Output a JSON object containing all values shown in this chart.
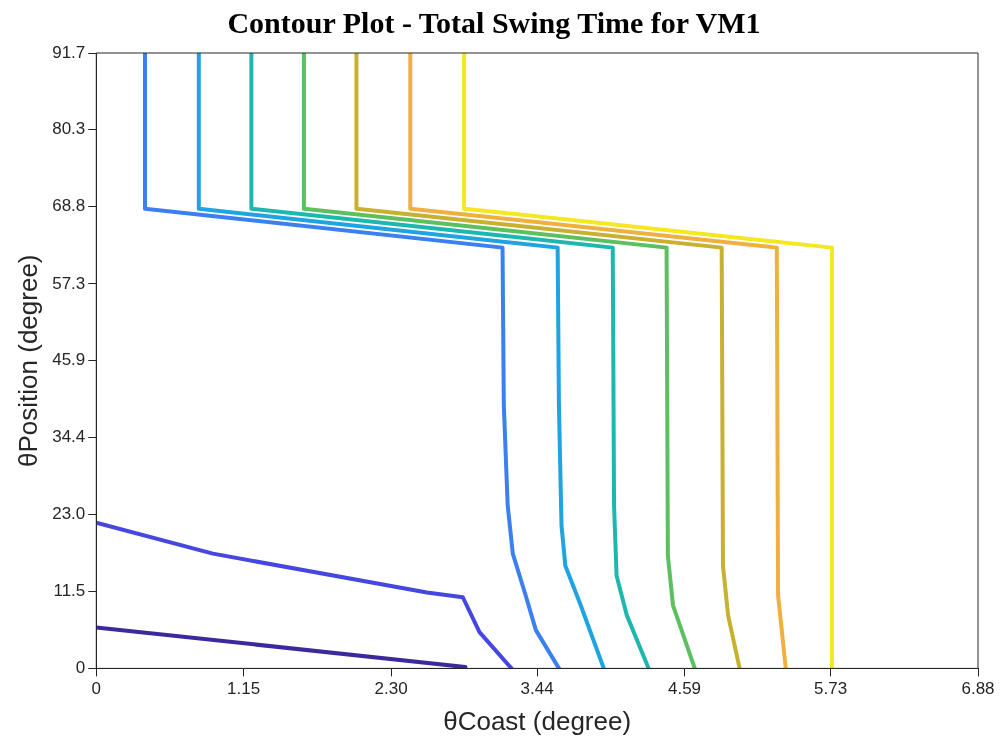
{
  "chart_data": {
    "type": "line",
    "title": "Contour Plot - Total Swing Time for VM1",
    "xlabel": "θCoast (degree)",
    "ylabel": "θPosition (degree)",
    "xlim": [
      0,
      6.88
    ],
    "xticks": [
      0,
      {
        "value": 1.15,
        "label": "1.15"
      },
      {
        "value": 2.3,
        "label": "2.30"
      },
      {
        "value": 3.44,
        "label": "3.44"
      },
      {
        "value": 4.59,
        "label": "4.59"
      },
      {
        "value": 5.73,
        "label": "5.73"
      },
      {
        "value": 6.88,
        "label": "6.88"
      }
    ],
    "ylim": [
      0,
      91.7
    ],
    "yticks": [
      0,
      11.5,
      {
        "value": 23,
        "label": "23.0"
      },
      34.4,
      45.9,
      57.3,
      68.8,
      80.3,
      91.7
    ],
    "grid": false,
    "legend": false,
    "marker": "none",
    "line_style": "solid",
    "series": [
      {
        "color": "#3a2a9c",
        "x": [
          0,
          2.88
        ],
        "values": [
          6.1,
          0.2
        ]
      },
      {
        "color": "#4646e0",
        "x": [
          0,
          0.91,
          2.58,
          2.86,
          2.99,
          3.24
        ],
        "values": [
          21.7,
          17.1,
          11.3,
          10.6,
          5.4,
          0
        ]
      },
      {
        "color": "#3a80f0",
        "x": [
          0.38,
          0.38,
          3.17,
          3.18,
          3.21,
          3.25,
          3.35,
          3.43,
          3.61
        ],
        "values": [
          91.7,
          68.5,
          62.7,
          39.2,
          24.3,
          17.1,
          10.9,
          5.7,
          0
        ]
      },
      {
        "color": "#1ea4e0",
        "x": [
          0.8,
          0.8,
          3.6,
          3.61,
          3.63,
          3.66,
          3.78,
          3.96
        ],
        "values": [
          91.7,
          68.5,
          62.7,
          39.2,
          21.3,
          15.3,
          9.4,
          0
        ]
      },
      {
        "color": "#1cb8b0",
        "x": [
          1.21,
          1.21,
          4.03,
          4.04,
          4.06,
          4.14,
          4.31
        ],
        "values": [
          91.7,
          68.5,
          62.7,
          24.3,
          13.8,
          7.9,
          0
        ]
      },
      {
        "color": "#5cc060",
        "x": [
          1.62,
          1.62,
          4.45,
          4.46,
          4.5,
          4.67
        ],
        "values": [
          91.7,
          68.5,
          62.7,
          16.8,
          9.4,
          0
        ]
      },
      {
        "color": "#c8b030",
        "x": [
          2.03,
          2.03,
          4.88,
          4.89,
          4.93,
          5.02
        ],
        "values": [
          91.7,
          68.5,
          62.7,
          15.3,
          7.9,
          0
        ]
      },
      {
        "color": "#f0b040",
        "x": [
          2.45,
          2.45,
          5.31,
          5.32,
          5.38
        ],
        "values": [
          91.7,
          68.5,
          62.7,
          10.9,
          0
        ]
      },
      {
        "color": "#f5e820",
        "x": [
          2.87,
          2.87,
          5.74,
          5.74
        ],
        "values": [
          91.7,
          68.5,
          62.7,
          0
        ]
      }
    ]
  }
}
